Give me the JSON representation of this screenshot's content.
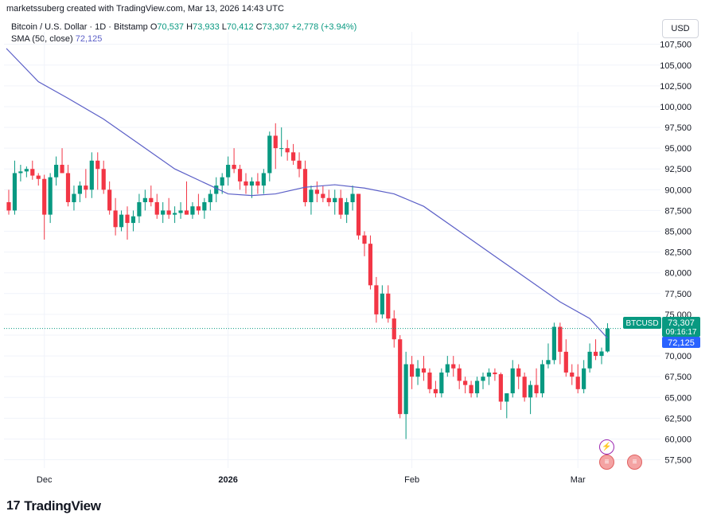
{
  "header": {
    "text": "marketssuberg created with TradingView.com, Mar 13, 2026 14:43 UTC"
  },
  "legend": {
    "symbol": "Bitcoin / U.S. Dollar · 1D · Bitstamp",
    "o_label": "O",
    "o_value": "70,537",
    "h_label": "H",
    "h_value": "73,933",
    "l_label": "L",
    "l_value": "70,412",
    "c_label": "C",
    "c_value": "73,307",
    "change": "+2,778 (+3.94%)",
    "sma_label": "SMA (50, close)",
    "sma_value": "72,125"
  },
  "currency_button": "USD",
  "logo": {
    "mark": "17",
    "text": "TradingView"
  },
  "price_tags": {
    "symbol": "BTCUSD",
    "price": "73,307",
    "countdown": "09:16:17",
    "sma": "72,125"
  },
  "colors": {
    "up": "#089981",
    "down": "#f23645",
    "sma": "#5b5fc7",
    "sma_tag": "#2962ff"
  },
  "chart_data": {
    "type": "candlestick",
    "y_ticks": [
      "57,500",
      "60,000",
      "62,500",
      "65,000",
      "67,500",
      "70,000",
      "72,500",
      "75,000",
      "77,500",
      "80,000",
      "82,500",
      "85,000",
      "87,500",
      "90,000",
      "92,500",
      "95,000",
      "97,500",
      "100,000",
      "102,500",
      "105,000",
      "107,500"
    ],
    "ylim": [
      56500,
      109000
    ],
    "x_ticks": [
      {
        "label": "Dec",
        "index": 6
      },
      {
        "label": "2026",
        "index": 37
      },
      {
        "label": "Feb",
        "index": 68
      },
      {
        "label": "Mar",
        "index": 96
      }
    ],
    "candles": [
      [
        88500,
        90000,
        87000,
        87500
      ],
      [
        87500,
        93500,
        87000,
        92000
      ],
      [
        92000,
        93000,
        91000,
        92200
      ],
      [
        92200,
        92800,
        91500,
        92500
      ],
      [
        92500,
        93500,
        91200,
        91700
      ],
      [
        91700,
        92000,
        90500,
        91300
      ],
      [
        91300,
        91800,
        84000,
        87000
      ],
      [
        87000,
        92000,
        86000,
        91500
      ],
      [
        91500,
        94000,
        90500,
        93000
      ],
      [
        93000,
        95000,
        92000,
        92000
      ],
      [
        92000,
        93000,
        88000,
        88500
      ],
      [
        88500,
        90500,
        87500,
        89500
      ],
      [
        89500,
        91000,
        88500,
        90500
      ],
      [
        90500,
        92500,
        89000,
        90000
      ],
      [
        90000,
        94500,
        89000,
        93500
      ],
      [
        93500,
        94500,
        90000,
        92500
      ],
      [
        92500,
        93500,
        89500,
        90000
      ],
      [
        90000,
        91000,
        87000,
        87500
      ],
      [
        87500,
        89000,
        84500,
        85500
      ],
      [
        85500,
        87500,
        85000,
        87000
      ],
      [
        87000,
        88000,
        84000,
        86000
      ],
      [
        86000,
        87500,
        85000,
        86800
      ],
      [
        86800,
        89500,
        86000,
        88500
      ],
      [
        88500,
        90000,
        87500,
        89000
      ],
      [
        89000,
        90500,
        88000,
        88500
      ],
      [
        88500,
        89500,
        86500,
        87000
      ],
      [
        87000,
        88500,
        86000,
        87500
      ],
      [
        87500,
        89000,
        86500,
        87000
      ],
      [
        87000,
        88000,
        86000,
        87200
      ],
      [
        87200,
        88500,
        86500,
        87500
      ],
      [
        87500,
        91000,
        87000,
        87000
      ],
      [
        87000,
        88500,
        86500,
        88000
      ],
      [
        88000,
        89500,
        87000,
        87500
      ],
      [
        87500,
        89000,
        86500,
        88500
      ],
      [
        88500,
        90000,
        87500,
        89500
      ],
      [
        89500,
        91500,
        88500,
        90500
      ],
      [
        90500,
        92000,
        89500,
        91500
      ],
      [
        91500,
        94000,
        90500,
        93000
      ],
      [
        93000,
        95000,
        92000,
        92500
      ],
      [
        92500,
        93000,
        90000,
        91000
      ],
      [
        91000,
        92000,
        89500,
        90500
      ],
      [
        90500,
        91500,
        89000,
        91000
      ],
      [
        91000,
        92000,
        89500,
        90500
      ],
      [
        90500,
        92500,
        89500,
        92000
      ],
      [
        92000,
        97000,
        91000,
        96500
      ],
      [
        96500,
        98000,
        92500,
        95000
      ],
      [
        95000,
        97500,
        94000,
        95000
      ],
      [
        95000,
        96000,
        93500,
        94500
      ],
      [
        94500,
        95500,
        93000,
        93500
      ],
      [
        93500,
        94500,
        91500,
        92500
      ],
      [
        92500,
        93500,
        88000,
        88500
      ],
      [
        88500,
        90500,
        87000,
        90000
      ],
      [
        90000,
        91000,
        88500,
        89500
      ],
      [
        89500,
        90500,
        88500,
        89000
      ],
      [
        89000,
        90000,
        88000,
        88500
      ],
      [
        88500,
        90000,
        87000,
        89000
      ],
      [
        89000,
        90000,
        86500,
        87000
      ],
      [
        87000,
        89000,
        86000,
        88500
      ],
      [
        88500,
        90500,
        87500,
        89500
      ],
      [
        89500,
        89500,
        84000,
        84500
      ],
      [
        84500,
        85000,
        82000,
        83500
      ],
      [
        83500,
        84500,
        78000,
        78500
      ],
      [
        78500,
        79500,
        74000,
        75000
      ],
      [
        75000,
        78500,
        74500,
        77500
      ],
      [
        77500,
        78500,
        74000,
        74500
      ],
      [
        74500,
        75500,
        71000,
        72000
      ],
      [
        72000,
        72500,
        62500,
        63000
      ],
      [
        63000,
        70500,
        60000,
        69000
      ],
      [
        69000,
        70000,
        66000,
        67500
      ],
      [
        67500,
        69500,
        66500,
        68500
      ],
      [
        68500,
        70000,
        67000,
        68000
      ],
      [
        68000,
        68500,
        65500,
        66000
      ],
      [
        66000,
        67000,
        65000,
        65500
      ],
      [
        65500,
        68500,
        65000,
        68000
      ],
      [
        68000,
        70000,
        67500,
        69000
      ],
      [
        69000,
        70000,
        67500,
        68500
      ],
      [
        68500,
        69000,
        66000,
        67000
      ],
      [
        67000,
        67500,
        65500,
        66500
      ],
      [
        66500,
        67000,
        65000,
        65500
      ],
      [
        65500,
        67500,
        65000,
        67000
      ],
      [
        67000,
        68000,
        66000,
        67500
      ],
      [
        67500,
        68500,
        66500,
        68000
      ],
      [
        68000,
        68500,
        67000,
        67800
      ],
      [
        67800,
        68000,
        63500,
        64500
      ],
      [
        64500,
        65500,
        62500,
        65500
      ],
      [
        65500,
        69500,
        65000,
        68500
      ],
      [
        68500,
        69000,
        66000,
        67500
      ],
      [
        67500,
        68000,
        64500,
        65000
      ],
      [
        65000,
        67000,
        63000,
        66500
      ],
      [
        66500,
        68500,
        65000,
        65500
      ],
      [
        65500,
        69500,
        65000,
        69000
      ],
      [
        69000,
        71500,
        68500,
        69500
      ],
      [
        69500,
        74000,
        69000,
        73500
      ],
      [
        73500,
        74000,
        69000,
        70500
      ],
      [
        70500,
        72000,
        67500,
        68000
      ],
      [
        68000,
        69000,
        66500,
        67500
      ],
      [
        67500,
        69000,
        65500,
        66000
      ],
      [
        66000,
        69500,
        65500,
        68500
      ],
      [
        68500,
        71500,
        68000,
        70500
      ],
      [
        70500,
        72000,
        69500,
        70000
      ],
      [
        70000,
        71000,
        69000,
        70537
      ],
      [
        70537,
        73933,
        70412,
        73307
      ]
    ],
    "sma_start": 107000,
    "sma_points": [
      [
        0,
        107000
      ],
      [
        5,
        103000
      ],
      [
        10,
        101000
      ],
      [
        16,
        98500
      ],
      [
        22,
        95500
      ],
      [
        28,
        92500
      ],
      [
        34,
        90500
      ],
      [
        37,
        89500
      ],
      [
        41,
        89300
      ],
      [
        45,
        89500
      ],
      [
        50,
        90300
      ],
      [
        55,
        90600
      ],
      [
        60,
        90200
      ],
      [
        65,
        89500
      ],
      [
        70,
        88000
      ],
      [
        76,
        85000
      ],
      [
        82,
        82000
      ],
      [
        88,
        79000
      ],
      [
        93,
        76500
      ],
      [
        98,
        74500
      ],
      [
        101,
        72125
      ]
    ]
  }
}
